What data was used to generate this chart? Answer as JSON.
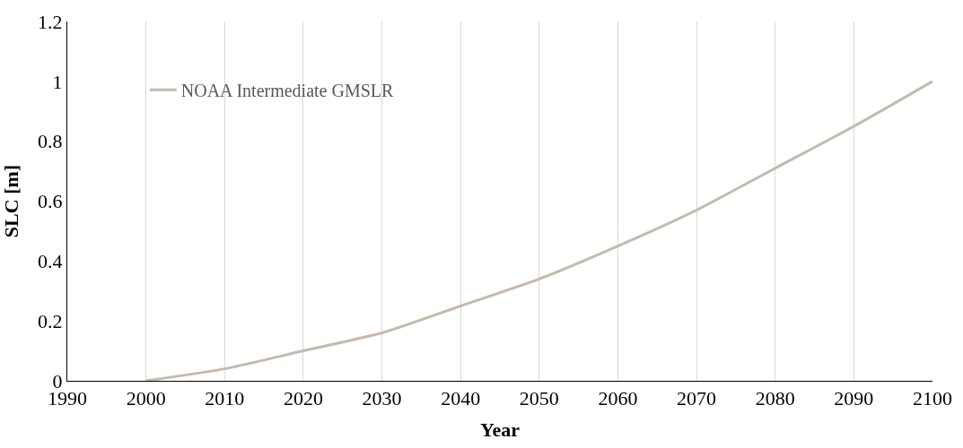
{
  "chart_data": {
    "type": "line",
    "xlabel": "Year",
    "ylabel": "SLC [m]",
    "x": [
      2000,
      2010,
      2020,
      2030,
      2040,
      2050,
      2060,
      2070,
      2080,
      2090,
      2100
    ],
    "series": [
      {
        "name": "NOAA Intermediate GMSLR",
        "color": "#c4b9ae",
        "values": [
          0,
          0.04,
          0.1,
          0.16,
          0.25,
          0.34,
          0.45,
          0.57,
          0.71,
          0.85,
          1.0
        ]
      }
    ],
    "xlim": [
      1990,
      2100
    ],
    "xticks": [
      1990,
      2000,
      2010,
      2020,
      2030,
      2040,
      2050,
      2060,
      2070,
      2080,
      2090,
      2100
    ],
    "ylim": [
      0,
      1.2
    ],
    "yticks": [
      0,
      0.2,
      0.4,
      0.6,
      0.8,
      {
        "value": 1,
        "label": "1"
      },
      1.2
    ],
    "grid": "x",
    "legend": "top left",
    "marker": "none",
    "line_style": "solid"
  }
}
